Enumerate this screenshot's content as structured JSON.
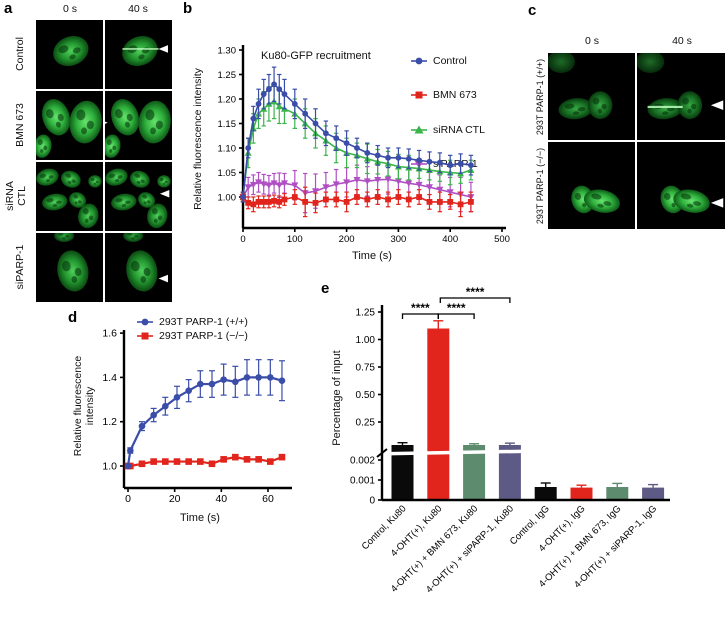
{
  "panels": {
    "a": {
      "label": "a",
      "time_0": "0 s",
      "time_40": "40 s",
      "rows": [
        "Control",
        "BMN 673",
        "siRNA CTL",
        "siPARP-1"
      ]
    },
    "b": {
      "label": "b"
    },
    "c": {
      "label": "c",
      "time_0": "0 s",
      "time_40": "40 s",
      "rows": [
        "293T PARP-1 (+/+)",
        "293T PARP-1 (−/−)"
      ]
    },
    "d": {
      "label": "d"
    },
    "e": {
      "label": "e"
    }
  },
  "chart_data": [
    {
      "type": "line",
      "title": "Ku80-GFP recruitment",
      "xlabel": "Time (s)",
      "ylabel": "Relative fluorescence intensity",
      "xlim": [
        0,
        500
      ],
      "ylim": [
        0.94,
        1.31
      ],
      "xticks": [
        0,
        100,
        200,
        300,
        400,
        500
      ],
      "xtick_labels": [
        "0",
        "100",
        "200",
        "300",
        "400",
        "500"
      ],
      "yticks": [
        1.0,
        1.05,
        1.1,
        1.15,
        1.2,
        1.25,
        1.3
      ],
      "ytick_labels": [
        "1.00",
        "1.05",
        "1.10",
        "1.15",
        "1.20",
        "1.25",
        "1.30"
      ],
      "legend_position": "upper right",
      "grid": false,
      "x": [
        0,
        10,
        20,
        30,
        40,
        50,
        60,
        70,
        80,
        100,
        120,
        140,
        160,
        180,
        200,
        220,
        240,
        260,
        280,
        300,
        320,
        340,
        360,
        380,
        400,
        420,
        440
      ],
      "series": [
        {
          "name": "Control",
          "color": "#3a4da8",
          "marker": "circle",
          "values": [
            1.0,
            1.1,
            1.16,
            1.19,
            1.21,
            1.22,
            1.23,
            1.22,
            1.21,
            1.19,
            1.17,
            1.15,
            1.13,
            1.12,
            1.11,
            1.1,
            1.09,
            1.085,
            1.08,
            1.08,
            1.078,
            1.075,
            1.072,
            1.07,
            1.065,
            1.068,
            1.065
          ],
          "errors": [
            0.01,
            0.02,
            0.025,
            0.03,
            0.03,
            0.03,
            0.035,
            0.03,
            0.03,
            0.03,
            0.03,
            0.03,
            0.025,
            0.025,
            0.025,
            0.02,
            0.02,
            0.02,
            0.02,
            0.02,
            0.02,
            0.02,
            0.02,
            0.02,
            0.02,
            0.02,
            0.02
          ]
        },
        {
          "name": "BMN 673",
          "color": "#e2251c",
          "marker": "square",
          "values": [
            1.0,
            0.988,
            0.985,
            0.99,
            0.99,
            0.99,
            0.992,
            0.99,
            0.995,
            1.0,
            0.99,
            0.988,
            0.995,
            0.995,
            0.99,
            1.0,
            0.995,
            1.0,
            0.995,
            1.0,
            0.995,
            1.0,
            0.99,
            0.99,
            0.99,
            0.985,
            0.99
          ],
          "errors": [
            0.008,
            0.012,
            0.015,
            0.012,
            0.012,
            0.012,
            0.012,
            0.012,
            0.012,
            0.015,
            0.03,
            0.02,
            0.015,
            0.015,
            0.02,
            0.015,
            0.015,
            0.015,
            0.015,
            0.015,
            0.015,
            0.015,
            0.015,
            0.02,
            0.015,
            0.025,
            0.02
          ]
        },
        {
          "name": "siRNA CTL",
          "color": "#3ab54a",
          "marker": "triangle-up",
          "values": [
            1.0,
            1.09,
            1.14,
            1.17,
            1.18,
            1.19,
            1.195,
            1.185,
            1.18,
            1.17,
            1.15,
            1.13,
            1.115,
            1.1,
            1.09,
            1.085,
            1.078,
            1.072,
            1.068,
            1.062,
            1.06,
            1.058,
            1.055,
            1.052,
            1.05,
            1.048,
            1.055
          ],
          "errors": [
            0.01,
            0.03,
            0.03,
            0.03,
            0.035,
            0.035,
            0.035,
            0.035,
            0.03,
            0.03,
            0.03,
            0.03,
            0.03,
            0.03,
            0.03,
            0.025,
            0.03,
            0.025,
            0.025,
            0.025,
            0.025,
            0.02,
            0.02,
            0.02,
            0.025,
            0.02,
            0.02
          ]
        },
        {
          "name": "siPARP-1",
          "color": "#b04fc4",
          "marker": "triangle-down",
          "values": [
            1.0,
            1.02,
            1.025,
            1.03,
            1.026,
            1.024,
            1.028,
            1.024,
            1.028,
            1.024,
            1.008,
            1.012,
            1.02,
            1.026,
            1.03,
            1.035,
            1.032,
            1.035,
            1.036,
            1.032,
            1.028,
            1.025,
            1.02,
            1.015,
            1.01,
            1.005,
            1.0
          ],
          "errors": [
            0.01,
            0.02,
            0.02,
            0.02,
            0.02,
            0.02,
            0.02,
            0.025,
            0.02,
            0.03,
            0.04,
            0.035,
            0.03,
            0.03,
            0.03,
            0.03,
            0.03,
            0.03,
            0.03,
            0.03,
            0.03,
            0.03,
            0.03,
            0.03,
            0.03,
            0.035,
            0.03
          ]
        }
      ]
    },
    {
      "type": "line",
      "title": "",
      "xlabel": "Time (s)",
      "ylabel": "Relative fluorescence intensity",
      "xlim": [
        0,
        70
      ],
      "ylim": [
        0.93,
        1.62
      ],
      "xticks": [
        0,
        20,
        40,
        60
      ],
      "xtick_labels": [
        "0",
        "20",
        "40",
        "60"
      ],
      "yticks": [
        1.0,
        1.2,
        1.4,
        1.6
      ],
      "ytick_labels": [
        "1.0",
        "1.2",
        "1.4",
        "1.6"
      ],
      "legend_position": "upper left",
      "grid": false,
      "x": [
        0,
        1,
        6,
        11,
        16,
        21,
        26,
        31,
        36,
        41,
        46,
        51,
        56,
        61,
        66
      ],
      "series": [
        {
          "name": "293T PARP-1 (+/+)",
          "color": "#3a4da8",
          "marker": "circle",
          "values": [
            1.0,
            1.07,
            1.18,
            1.23,
            1.27,
            1.31,
            1.34,
            1.37,
            1.37,
            1.39,
            1.38,
            1.4,
            1.4,
            1.4,
            1.385
          ],
          "errors": [
            0.005,
            0.012,
            0.02,
            0.03,
            0.04,
            0.05,
            0.05,
            0.06,
            0.06,
            0.07,
            0.07,
            0.08,
            0.08,
            0.08,
            0.09
          ]
        },
        {
          "name": "293T PARP-1 (−/−)",
          "color": "#e2251c",
          "marker": "square",
          "values": [
            1.0,
            1.0,
            1.01,
            1.02,
            1.02,
            1.02,
            1.02,
            1.02,
            1.01,
            1.03,
            1.04,
            1.03,
            1.03,
            1.02,
            1.04
          ],
          "errors": [
            0.004,
            0.004,
            0.006,
            0.006,
            0.006,
            0.006,
            0.006,
            0.006,
            0.006,
            0.008,
            0.008,
            0.008,
            0.008,
            0.008,
            0.01
          ]
        }
      ]
    },
    {
      "type": "bar",
      "ylabel": "Percentage of input",
      "categories": [
        "Control, Ku80",
        "4-OHT(+), Ku80",
        "4-OHT(+) + BMN 673, Ku80",
        "4-OHT(+) + siPARP-1, Ku80",
        "Control, IgG",
        "4-OHT(+), IgG",
        "4-OHT(+) + BMN 673, IgG",
        "4-OHT(+) + siPARP-1, IgG"
      ],
      "values": [
        0.1,
        1.1,
        0.1,
        0.1,
        0.00065,
        0.00062,
        0.00065,
        0.00062
      ],
      "errors": [
        0.015,
        0.07,
        0.008,
        0.012,
        0.0002,
        0.00012,
        0.00018,
        0.00015
      ],
      "colors": [
        "#0a0a0a",
        "#e2251c",
        "#5d8b6e",
        "#5e5a86",
        "#0a0a0a",
        "#e2251c",
        "#5d8b6e",
        "#5e5a86"
      ],
      "axis_break": {
        "lower_max": 0.002,
        "upper_min": 0.25
      },
      "yticks_upper": [
        0.25,
        0.5,
        0.75,
        1.0,
        1.25
      ],
      "ytick_labels_upper": [
        "0.25",
        "0.50",
        "0.75",
        "1.00",
        "1.25"
      ],
      "yticks_lower": [
        0,
        0.001,
        0.002
      ],
      "ytick_labels_lower": [
        "0",
        "0.001",
        "0.002"
      ],
      "significance": [
        {
          "from": 0,
          "to": 1,
          "label": "****",
          "level": 0
        },
        {
          "from": 1,
          "to": 2,
          "label": "****",
          "level": 0
        },
        {
          "from": 1,
          "to": 3,
          "label": "****",
          "level": 1
        }
      ]
    }
  ]
}
